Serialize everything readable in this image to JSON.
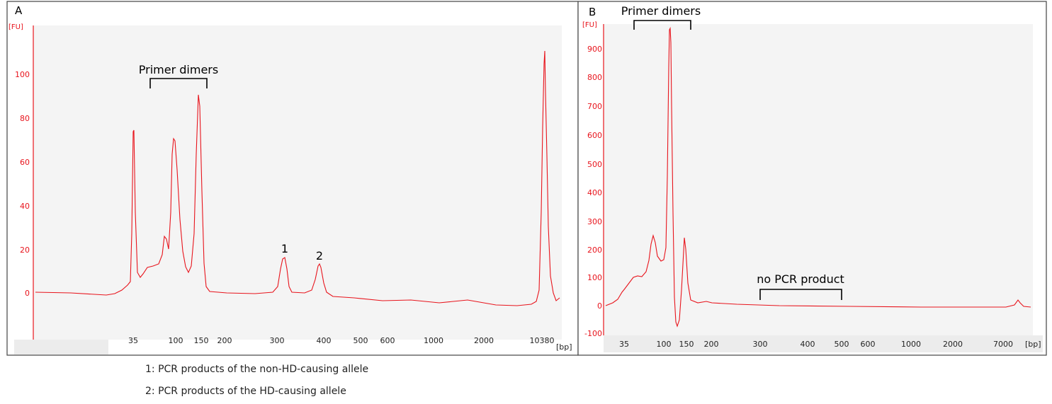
{
  "chart_data": [
    {
      "type": "line",
      "panel_label": "A",
      "y_unit": "[FU]",
      "x_unit": "[bp]",
      "ylim": [
        -17,
        117
      ],
      "y_ticks": [
        0,
        20,
        40,
        60,
        80,
        100
      ],
      "x_ticks": [
        "35",
        "100",
        "150",
        "200",
        "300",
        "400",
        "500",
        "600",
        "1000",
        "2000",
        "10380"
      ],
      "grid": false,
      "series": [
        {
          "color": "#e8141c",
          "baseline": 0,
          "peaks": [
            {
              "x": "35",
              "height": 74.5
            },
            {
              "x": "100",
              "height": 70.5
            },
            {
              "x": "150",
              "height": 90.5
            },
            {
              "x": "300",
              "height": 17
            },
            {
              "x": "400",
              "height": 14
            },
            {
              "x": "10380",
              "height": 110
            }
          ]
        }
      ],
      "annotations": [
        {
          "text": "Primer dimers",
          "from": "35",
          "to": "150"
        },
        {
          "text": "1",
          "x": "300"
        },
        {
          "text": "2",
          "x": "400"
        }
      ]
    },
    {
      "type": "line",
      "panel_label": "B",
      "y_unit": "[FU]",
      "x_unit": "[bp]",
      "ylim": [
        -100,
        980
      ],
      "y_ticks": [
        -100,
        0,
        100,
        200,
        300,
        400,
        500,
        600,
        700,
        800,
        900
      ],
      "x_ticks": [
        "35",
        "100",
        "150",
        "200",
        "300",
        "400",
        "500",
        "600",
        "1000",
        "2000",
        "7000"
      ],
      "grid": false,
      "series": [
        {
          "color": "#e8141c",
          "baseline": 0,
          "peaks": [
            {
              "x": "100",
              "height": 970
            },
            {
              "x": "150",
              "height": 235
            },
            {
              "x": "7000",
              "height": 20
            }
          ]
        }
      ],
      "annotations": [
        {
          "text": "Primer dimers",
          "from": "35",
          "to": "150"
        },
        {
          "text": "no PCR product",
          "from": "300",
          "to": "500"
        }
      ]
    }
  ],
  "notes": [
    "1: PCR products of the non-HD-causing allele",
    "2: PCR products of the HD-causing allele"
  ]
}
